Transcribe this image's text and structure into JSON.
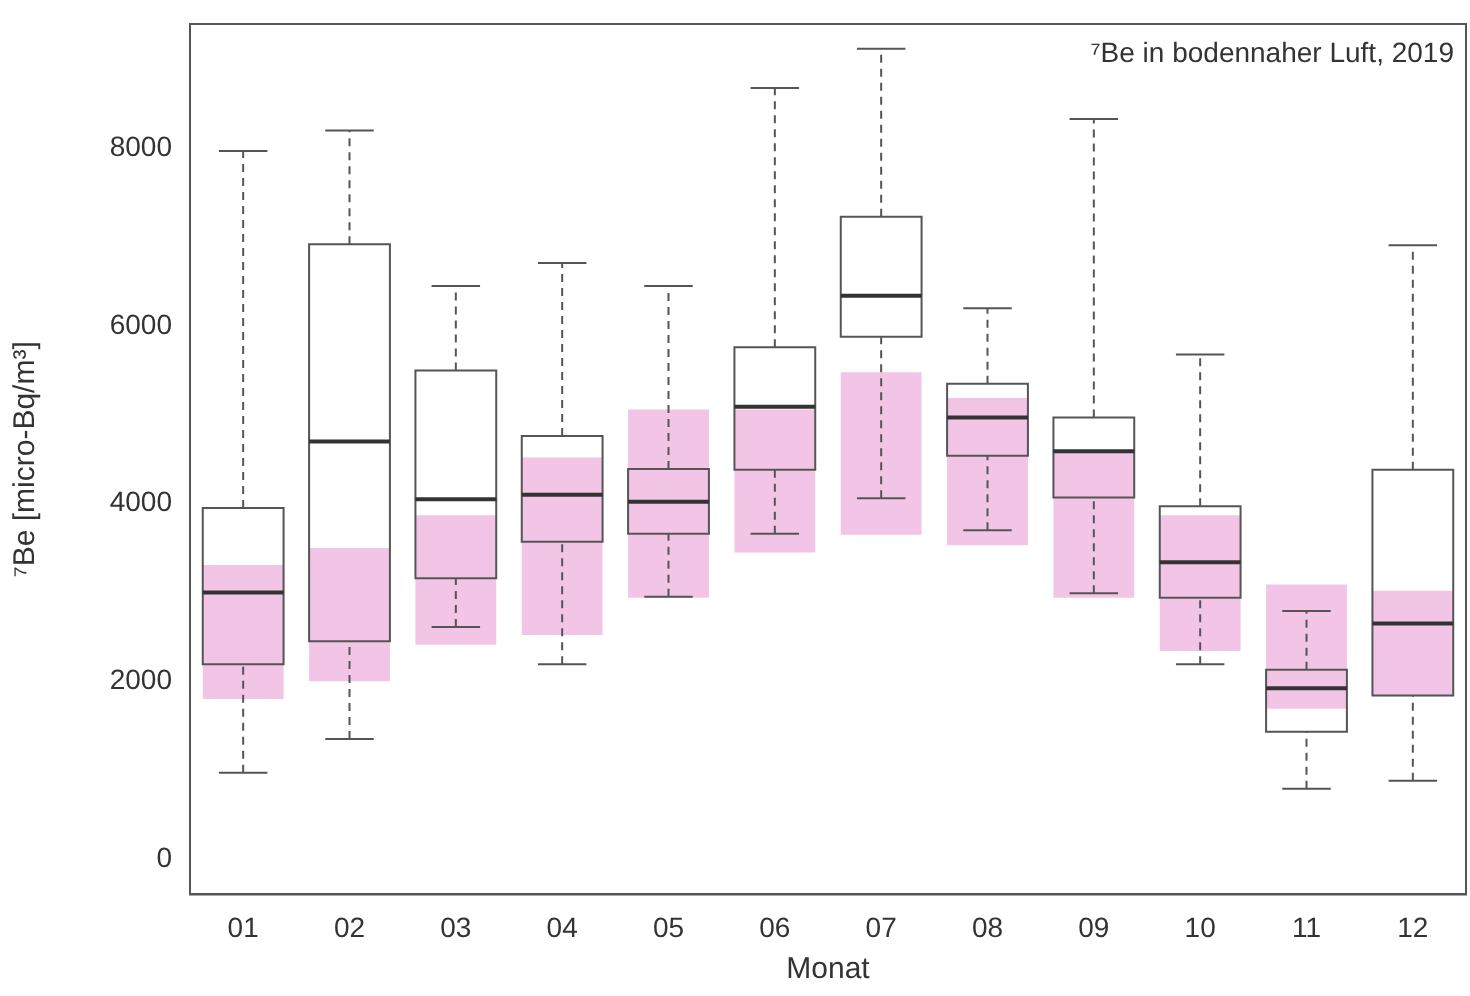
{
  "chart_data": {
    "type": "box",
    "title": "⁷Be in bodennaher Luft, 2019",
    "xlabel": "Monat",
    "ylabel": "⁷Be [micro-Bq/m³]",
    "categories": [
      "01",
      "02",
      "03",
      "04",
      "05",
      "06",
      "07",
      "08",
      "09",
      "10",
      "11",
      "12"
    ],
    "ylim": [
      -400,
      9400
    ],
    "yticks": [
      0,
      2000,
      4000,
      6000,
      8000
    ],
    "grid": false,
    "legend": false,
    "series": [
      {
        "type": "bar",
        "color": "#f2c4e6",
        "base": [
          1800,
          2000,
          2410,
          2520,
          2940,
          3450,
          3650,
          3530,
          2940,
          2340,
          1690,
          1830
        ],
        "values": [
          1510,
          1500,
          1460,
          2000,
          2120,
          1610,
          1830,
          1660,
          1650,
          1530,
          1400,
          1190
        ]
      },
      {
        "type": "box",
        "color": "#555555",
        "boxes": [
          {
            "low": 970,
            "q1": 2190,
            "median": 3000,
            "q3": 3950,
            "high": 7970
          },
          {
            "low": 1350,
            "q1": 2450,
            "median": 4700,
            "q3": 6920,
            "high": 8200
          },
          {
            "low": 2610,
            "q1": 3160,
            "median": 4050,
            "q3": 5500,
            "high": 6450
          },
          {
            "low": 2190,
            "q1": 3570,
            "median": 4100,
            "q3": 4760,
            "high": 6710
          },
          {
            "low": 2950,
            "q1": 3660,
            "median": 4020,
            "q3": 4390,
            "high": 6450
          },
          {
            "low": 3660,
            "q1": 4380,
            "median": 5090,
            "q3": 5760,
            "high": 8680
          },
          {
            "low": 4060,
            "q1": 5880,
            "median": 6340,
            "q3": 7230,
            "high": 9120
          },
          {
            "low": 3700,
            "q1": 4540,
            "median": 4970,
            "q3": 5350,
            "high": 6200
          },
          {
            "low": 2990,
            "q1": 4070,
            "median": 4590,
            "q3": 4970,
            "high": 8330
          },
          {
            "low": 2190,
            "q1": 2940,
            "median": 3340,
            "q3": 3970,
            "high": 5680
          },
          {
            "low": 790,
            "q1": 1430,
            "median": 1920,
            "q3": 2130,
            "high": 2790
          },
          {
            "low": 880,
            "q1": 1840,
            "median": 2650,
            "q3": 4380,
            "high": 6910
          }
        ]
      }
    ]
  }
}
